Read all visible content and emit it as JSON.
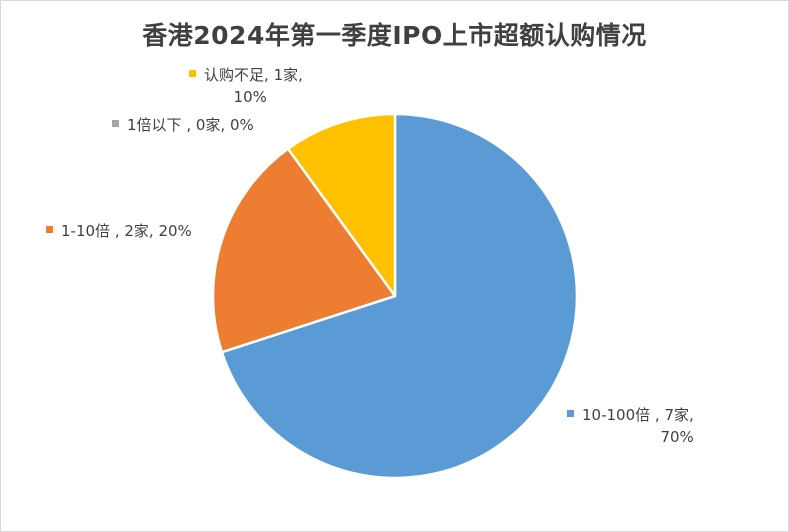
{
  "chart_data": {
    "type": "pie",
    "title": "香港2024年第一季度IPO上市超额认购情况",
    "slices": [
      {
        "category": "10-100倍",
        "count_label": "7家",
        "value": 70,
        "percent_label": "70%",
        "color": "#5b9bd5"
      },
      {
        "category": "1-10倍",
        "count_label": "2家",
        "value": 20,
        "percent_label": "20%",
        "color": "#ed7d31"
      },
      {
        "category": "1倍以下",
        "count_label": "0家",
        "value": 0,
        "percent_label": "0%",
        "color": "#a5a5a5"
      },
      {
        "category": "认购不足",
        "count_label": "1家",
        "value": 10,
        "percent_label": "10%",
        "color": "#ffc000"
      }
    ]
  }
}
